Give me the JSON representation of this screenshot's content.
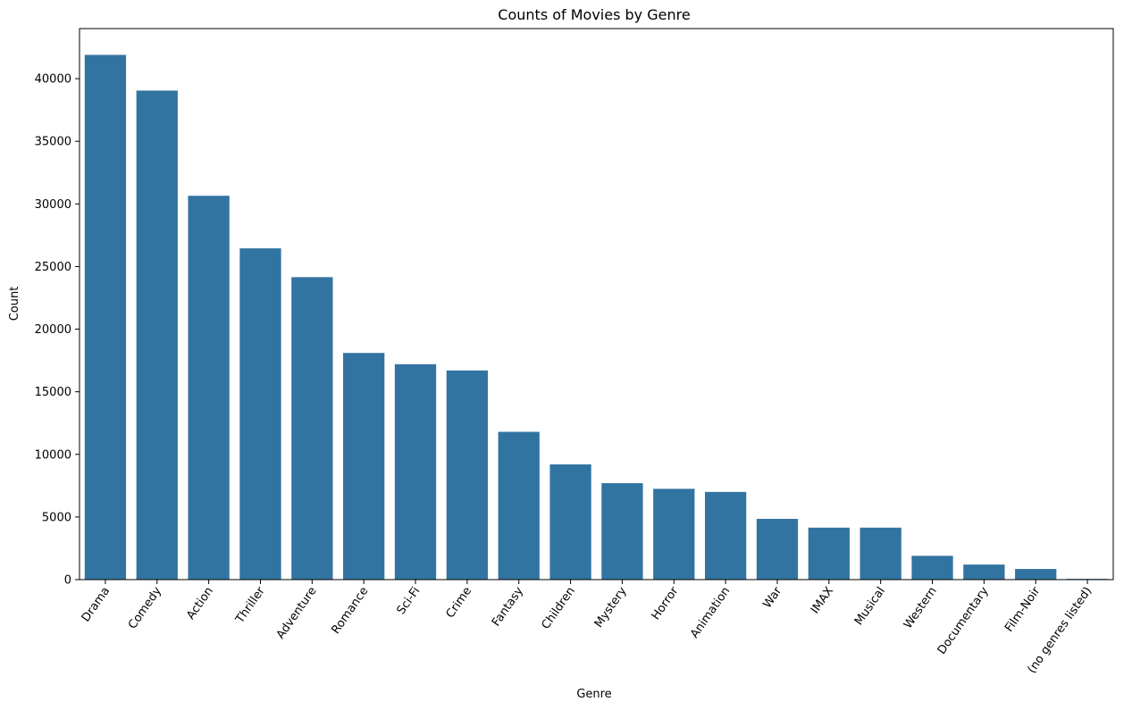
{
  "chart_data": {
    "type": "bar",
    "title": "Counts of Movies by Genre",
    "xlabel": "Genre",
    "ylabel": "Count",
    "ylim": [
      0,
      44000
    ],
    "yticks": [
      0,
      5000,
      10000,
      15000,
      20000,
      25000,
      30000,
      35000,
      40000
    ],
    "grid": false,
    "bar_color": "#3274a1",
    "categories": [
      "Drama",
      "Comedy",
      "Action",
      "Thriller",
      "Adventure",
      "Romance",
      "Sci-Fi",
      "Crime",
      "Fantasy",
      "Children",
      "Mystery",
      "Horror",
      "Animation",
      "War",
      "IMAX",
      "Musical",
      "Western",
      "Documentary",
      "Film-Noir",
      "(no genres listed)"
    ],
    "values": [
      41900,
      39050,
      30650,
      26450,
      24150,
      18100,
      17200,
      16700,
      11800,
      9200,
      7700,
      7250,
      7000,
      4850,
      4150,
      4150,
      1900,
      1200,
      850,
      60
    ]
  }
}
